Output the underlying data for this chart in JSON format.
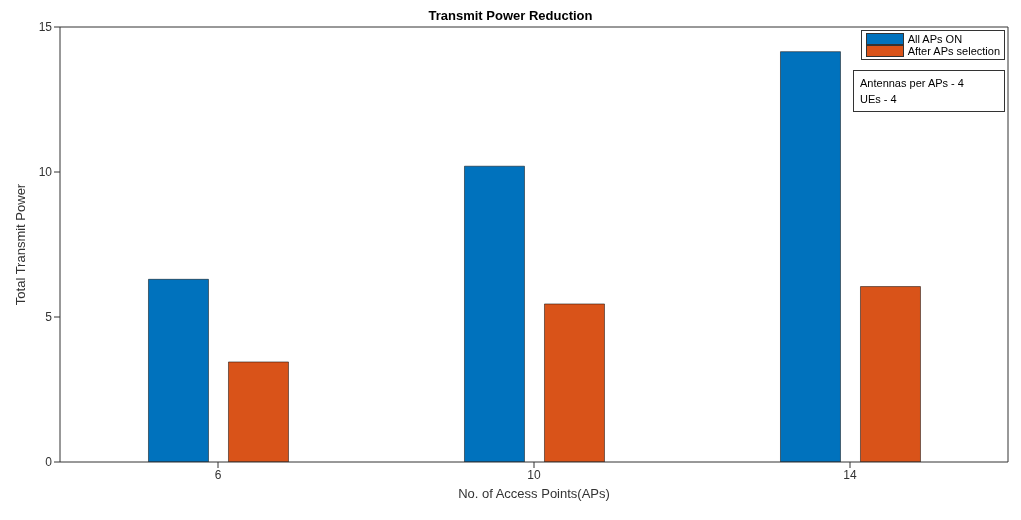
{
  "chart_data": {
    "type": "bar",
    "title": "Transmit Power Reduction",
    "xlabel": "No. of Access Points(APs)",
    "ylabel": "Total Transmit Power",
    "categories": [
      "6",
      "10",
      "14"
    ],
    "series": [
      {
        "name": "All APs ON",
        "color": "#0072bd",
        "values": [
          6.3,
          10.2,
          14.15
        ]
      },
      {
        "name": "After APs selection",
        "color": "#d95319",
        "values": [
          3.45,
          5.45,
          6.05
        ]
      }
    ],
    "ylim": [
      0,
      15
    ],
    "yticks": [
      0,
      5,
      10,
      15
    ],
    "legend": "top right",
    "annotations": [
      "Antennas per APs - 4\nUEs - 4"
    ]
  }
}
